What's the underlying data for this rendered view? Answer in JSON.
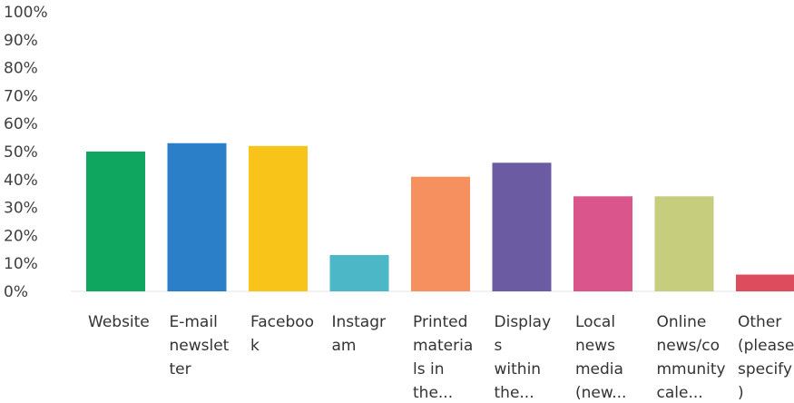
{
  "chart_data": {
    "type": "bar",
    "title": "",
    "xlabel": "",
    "ylabel": "",
    "ylim": [
      0,
      100
    ],
    "yticks": [
      "0%",
      "10%",
      "20%",
      "30%",
      "40%",
      "50%",
      "60%",
      "70%",
      "80%",
      "90%",
      "100%"
    ],
    "grid": false,
    "legend": "none",
    "categories": [
      {
        "lines": [
          "Website"
        ]
      },
      {
        "lines": [
          "E-mail",
          "newslet",
          "ter"
        ]
      },
      {
        "lines": [
          "Faceboo",
          "k"
        ]
      },
      {
        "lines": [
          "Instagr",
          "am"
        ]
      },
      {
        "lines": [
          "Printed",
          "materia",
          "ls in",
          "the..."
        ]
      },
      {
        "lines": [
          "Display",
          "s",
          "within",
          "the..."
        ]
      },
      {
        "lines": [
          "Local",
          "news",
          "media",
          "(new..."
        ]
      },
      {
        "lines": [
          "Online",
          "news/co",
          "mmunity",
          "cale..."
        ]
      },
      {
        "lines": [
          "Other",
          "(please",
          "specify",
          ")"
        ]
      }
    ],
    "values": [
      50,
      53,
      52,
      13,
      41,
      46,
      34,
      34,
      6
    ],
    "colors": [
      "#0fa75f",
      "#2b7fc9",
      "#f9c41a",
      "#4bb7c7",
      "#f6915f",
      "#6a5ba3",
      "#d9558c",
      "#c6ce7e",
      "#dd4c5d"
    ]
  }
}
